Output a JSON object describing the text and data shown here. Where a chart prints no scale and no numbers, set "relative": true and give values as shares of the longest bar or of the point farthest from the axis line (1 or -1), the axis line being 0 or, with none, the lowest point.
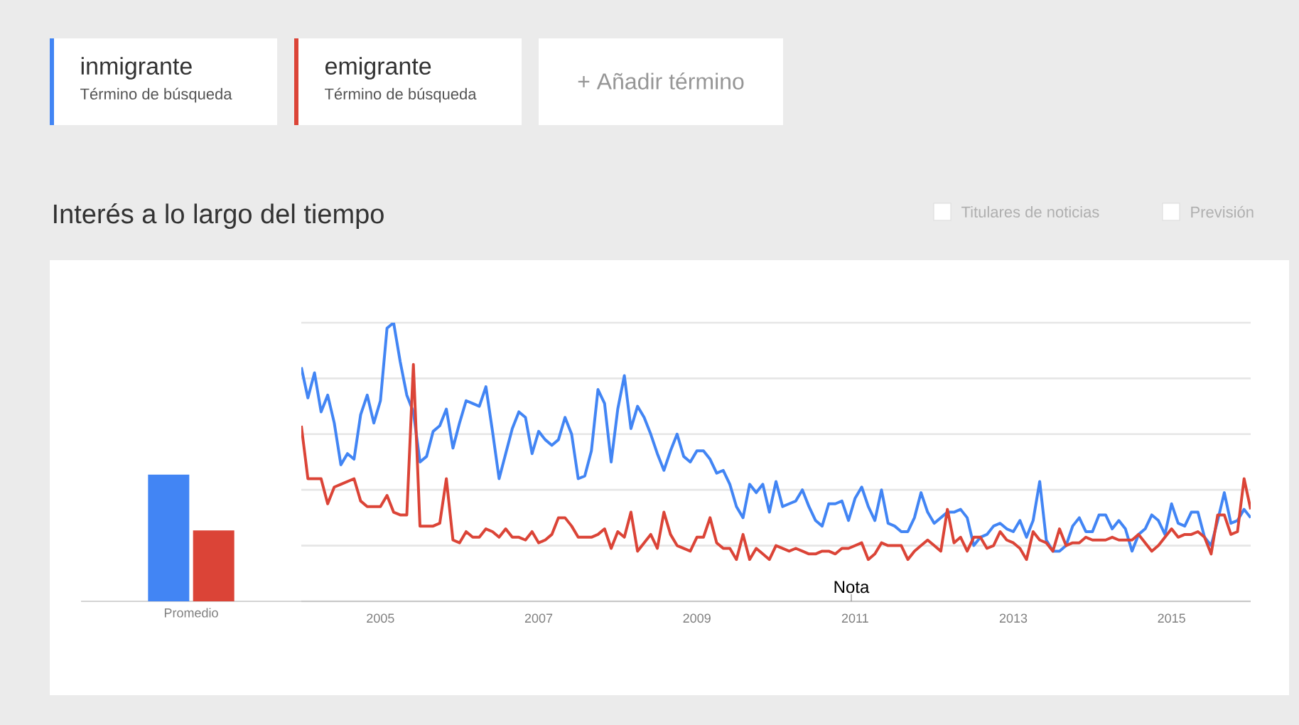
{
  "chart_data": [
    {
      "type": "bar",
      "categories": [
        "Promedio"
      ],
      "relative": true,
      "series": [
        {
          "color": "#4285f4",
          "values": [
            1
          ]
        },
        {
          "color": "#db4437",
          "values": [
            0.56
          ]
        }
      ]
    },
    {
      "type": "line",
      "title": "Interés a lo largo del tiempo",
      "relative": true,
      "grid": "y",
      "legend": "top left",
      "x": [
        "2004-01",
        "2004-02",
        "2004-03",
        "2004-04",
        "2004-05",
        "2004-06",
        "2004-07",
        "2004-08",
        "2004-09",
        "2004-10",
        "2004-11",
        "2004-12",
        "2005-01",
        "2005-02",
        "2005-03",
        "2005-04",
        "2005-05",
        "2005-06",
        "2005-07",
        "2005-08",
        "2005-09",
        "2005-10",
        "2005-11",
        "2005-12",
        "2006-01",
        "2006-02",
        "2006-03",
        "2006-04",
        "2006-05",
        "2006-06",
        "2006-07",
        "2006-08",
        "2006-09",
        "2006-10",
        "2006-11",
        "2006-12",
        "2007-01",
        "2007-02",
        "2007-03",
        "2007-04",
        "2007-05",
        "2007-06",
        "2007-07",
        "2007-08",
        "2007-09",
        "2007-10",
        "2007-11",
        "2007-12",
        "2008-01",
        "2008-02",
        "2008-03",
        "2008-04",
        "2008-05",
        "2008-06",
        "2008-07",
        "2008-08",
        "2008-09",
        "2008-10",
        "2008-11",
        "2008-12",
        "2009-01",
        "2009-02",
        "2009-03",
        "2009-04",
        "2009-05",
        "2009-06",
        "2009-07",
        "2009-08",
        "2009-09",
        "2009-10",
        "2009-11",
        "2009-12",
        "2010-01",
        "2010-02",
        "2010-03",
        "2010-04",
        "2010-05",
        "2010-06",
        "2010-07",
        "2010-08",
        "2010-09",
        "2010-10",
        "2010-11",
        "2010-12",
        "2011-01",
        "2011-02",
        "2011-03",
        "2011-04",
        "2011-05",
        "2011-06",
        "2011-07",
        "2011-08",
        "2011-09",
        "2011-10",
        "2011-11",
        "2011-12",
        "2012-01",
        "2012-02",
        "2012-03",
        "2012-04",
        "2012-05",
        "2012-06",
        "2012-07",
        "2012-08",
        "2012-09",
        "2012-10",
        "2012-11",
        "2012-12",
        "2013-01",
        "2013-02",
        "2013-03",
        "2013-04",
        "2013-05",
        "2013-06",
        "2013-07",
        "2013-08",
        "2013-09",
        "2013-10",
        "2013-11",
        "2013-12",
        "2014-01",
        "2014-02",
        "2014-03",
        "2014-04",
        "2014-05",
        "2014-06",
        "2014-07",
        "2014-08",
        "2014-09",
        "2014-10",
        "2014-11",
        "2014-12",
        "2015-01",
        "2015-02",
        "2015-03",
        "2015-04",
        "2015-05",
        "2015-06",
        "2015-07",
        "2015-08",
        "2015-09",
        "2015-10",
        "2015-11",
        "2015-12",
        "2016-01"
      ],
      "xlim": [
        "2004-01",
        "2016-01"
      ],
      "xticks": [
        {
          "value": "2005-01",
          "label": "2005"
        },
        {
          "value": "2007-01",
          "label": "2007"
        },
        {
          "value": "2009-01",
          "label": "2009"
        },
        {
          "value": "2011-01",
          "label": "2011"
        },
        {
          "value": "2013-01",
          "label": "2013"
        },
        {
          "value": "2015-01",
          "label": "2015"
        }
      ],
      "series": [
        {
          "name": "inmigrante",
          "color": "#4285f4",
          "values": [
            0.84,
            0.73,
            0.82,
            0.68,
            0.74,
            0.64,
            0.49,
            0.53,
            0.51,
            0.67,
            0.74,
            0.64,
            0.72,
            0.98,
            1.0,
            0.86,
            0.74,
            0.68,
            0.5,
            0.52,
            0.61,
            0.63,
            0.69,
            0.55,
            0.64,
            0.72,
            0.71,
            0.7,
            0.77,
            0.61,
            0.44,
            0.53,
            0.62,
            0.68,
            0.66,
            0.53,
            0.61,
            0.58,
            0.56,
            0.58,
            0.66,
            0.6,
            0.44,
            0.45,
            0.54,
            0.76,
            0.71,
            0.5,
            0.69,
            0.81,
            0.62,
            0.7,
            0.66,
            0.6,
            0.53,
            0.47,
            0.54,
            0.6,
            0.52,
            0.5,
            0.54,
            0.54,
            0.51,
            0.46,
            0.47,
            0.42,
            0.34,
            0.3,
            0.42,
            0.39,
            0.42,
            0.32,
            0.43,
            0.34,
            0.35,
            0.36,
            0.4,
            0.34,
            0.29,
            0.27,
            0.35,
            0.35,
            0.36,
            0.29,
            0.37,
            0.41,
            0.34,
            0.29,
            0.4,
            0.28,
            0.27,
            0.25,
            0.25,
            0.3,
            0.39,
            0.32,
            0.28,
            0.3,
            0.32,
            0.32,
            0.33,
            0.3,
            0.2,
            0.23,
            0.24,
            0.27,
            0.28,
            0.26,
            0.25,
            0.29,
            0.23,
            0.29,
            0.43,
            0.22,
            0.18,
            0.18,
            0.2,
            0.27,
            0.3,
            0.25,
            0.25,
            0.31,
            0.31,
            0.26,
            0.29,
            0.26,
            0.18,
            0.24,
            0.26,
            0.31,
            0.29,
            0.24,
            0.35,
            0.28,
            0.27,
            0.32,
            0.32,
            0.23,
            0.2,
            0.29,
            0.39,
            0.28,
            0.29,
            0.33,
            0.3
          ]
        },
        {
          "name": "emigrante",
          "color": "#db4437",
          "values": [
            0.63,
            0.44,
            0.44,
            0.44,
            0.35,
            0.41,
            0.42,
            0.43,
            0.44,
            0.36,
            0.34,
            0.34,
            0.34,
            0.38,
            0.32,
            0.31,
            0.31,
            0.85,
            0.27,
            0.27,
            0.27,
            0.28,
            0.44,
            0.22,
            0.21,
            0.25,
            0.23,
            0.23,
            0.26,
            0.25,
            0.23,
            0.26,
            0.23,
            0.23,
            0.22,
            0.25,
            0.21,
            0.22,
            0.24,
            0.3,
            0.3,
            0.27,
            0.23,
            0.23,
            0.23,
            0.24,
            0.26,
            0.19,
            0.25,
            0.23,
            0.32,
            0.18,
            0.21,
            0.24,
            0.19,
            0.32,
            0.24,
            0.2,
            0.19,
            0.18,
            0.23,
            0.23,
            0.3,
            0.21,
            0.19,
            0.19,
            0.15,
            0.24,
            0.15,
            0.19,
            0.17,
            0.15,
            0.2,
            0.19,
            0.18,
            0.19,
            0.18,
            0.17,
            0.17,
            0.18,
            0.18,
            0.17,
            0.19,
            0.19,
            0.2,
            0.21,
            0.15,
            0.17,
            0.21,
            0.2,
            0.2,
            0.2,
            0.15,
            0.18,
            0.2,
            0.22,
            0.2,
            0.18,
            0.33,
            0.21,
            0.23,
            0.18,
            0.23,
            0.23,
            0.19,
            0.2,
            0.25,
            0.22,
            0.21,
            0.19,
            0.15,
            0.25,
            0.22,
            0.21,
            0.18,
            0.26,
            0.2,
            0.21,
            0.21,
            0.23,
            0.22,
            0.22,
            0.22,
            0.23,
            0.22,
            0.22,
            0.22,
            0.24,
            0.21,
            0.18,
            0.2,
            0.23,
            0.26,
            0.23,
            0.24,
            0.24,
            0.25,
            0.23,
            0.17,
            0.31,
            0.31,
            0.24,
            0.25,
            0.44,
            0.33
          ]
        }
      ],
      "annotations": [
        "Término de búsqueda",
        "Término de búsqueda",
        "+ Añadir término",
        "Titulares de noticias",
        "Previsión",
        "Nota"
      ]
    }
  ]
}
